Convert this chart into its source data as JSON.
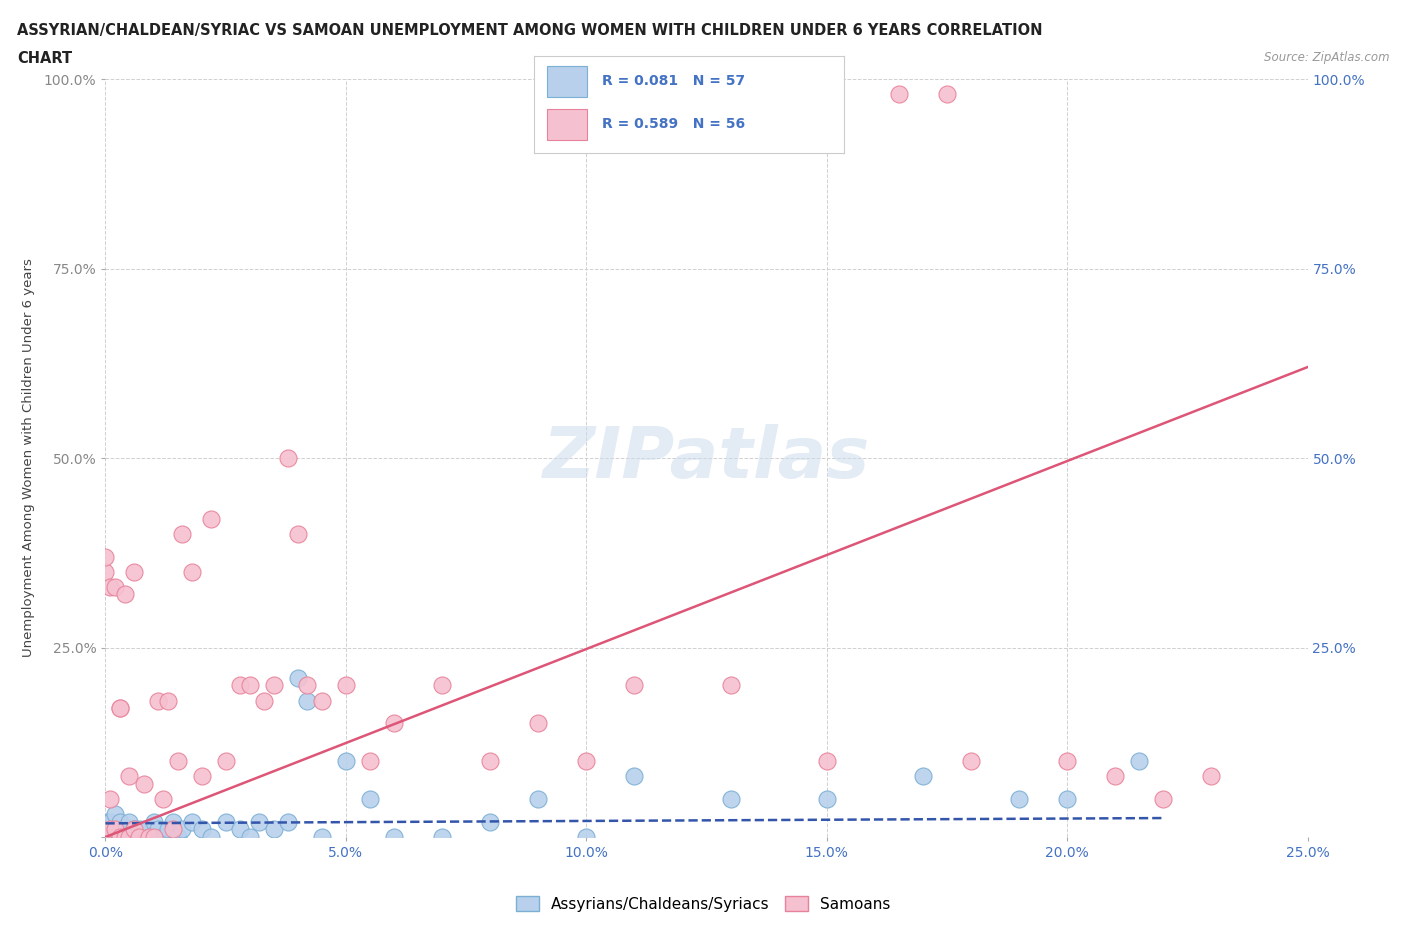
{
  "title_line1": "ASSYRIAN/CHALDEAN/SYRIAC VS SAMOAN UNEMPLOYMENT AMONG WOMEN WITH CHILDREN UNDER 6 YEARS CORRELATION",
  "title_line2": "CHART",
  "source": "Source: ZipAtlas.com",
  "ylabel": "Unemployment Among Women with Children Under 6 years",
  "xlim": [
    0,
    0.25
  ],
  "ylim": [
    0,
    1.0
  ],
  "xtick_vals": [
    0.0,
    0.05,
    0.1,
    0.15,
    0.2,
    0.25
  ],
  "ytick_vals": [
    0.0,
    0.25,
    0.5,
    0.75,
    1.0
  ],
  "xtick_labels": [
    "0.0%",
    "5.0%",
    "10.0%",
    "15.0%",
    "20.0%",
    "25.0%"
  ],
  "ytick_labels_left": [
    "",
    "25.0%",
    "50.0%",
    "75.0%",
    "100.0%"
  ],
  "ytick_labels_right": [
    "",
    "25.0%",
    "50.0%",
    "75.0%",
    "100.0%"
  ],
  "blue_fill": "#b8d0ec",
  "blue_edge": "#7bafd4",
  "pink_fill": "#f5c0d0",
  "pink_edge": "#e8829a",
  "line_blue_color": "#3355aa",
  "line_pink_color": "#dd5577",
  "tick_color": "#4472c4",
  "left_tick_color": "#888888",
  "group1_label": "Assyrians/Chaldeans/Syriacs",
  "group2_label": "Samoans",
  "watermark": "ZIPatlas",
  "bg_color": "#ffffff",
  "grid_color": "#d0d0d0",
  "blue_scatter_x": [
    0.0,
    0.0,
    0.0,
    0.001,
    0.001,
    0.001,
    0.002,
    0.002,
    0.002,
    0.003,
    0.003,
    0.003,
    0.004,
    0.004,
    0.005,
    0.005,
    0.005,
    0.006,
    0.006,
    0.007,
    0.007,
    0.008,
    0.009,
    0.01,
    0.01,
    0.011,
    0.012,
    0.013,
    0.014,
    0.015,
    0.016,
    0.018,
    0.02,
    0.022,
    0.025,
    0.028,
    0.03,
    0.032,
    0.035,
    0.038,
    0.04,
    0.042,
    0.045,
    0.05,
    0.055,
    0.06,
    0.07,
    0.08,
    0.09,
    0.1,
    0.11,
    0.13,
    0.15,
    0.17,
    0.19,
    0.2,
    0.215
  ],
  "blue_scatter_y": [
    0.0,
    0.01,
    0.02,
    0.0,
    0.01,
    0.02,
    0.0,
    0.01,
    0.03,
    0.0,
    0.01,
    0.02,
    0.0,
    0.01,
    0.0,
    0.01,
    0.02,
    0.0,
    0.01,
    0.0,
    0.01,
    0.01,
    0.0,
    0.0,
    0.02,
    0.01,
    0.0,
    0.01,
    0.02,
    0.0,
    0.01,
    0.02,
    0.01,
    0.0,
    0.02,
    0.01,
    0.0,
    0.02,
    0.01,
    0.02,
    0.21,
    0.18,
    0.0,
    0.1,
    0.05,
    0.0,
    0.0,
    0.02,
    0.05,
    0.0,
    0.08,
    0.05,
    0.05,
    0.08,
    0.05,
    0.05,
    0.1
  ],
  "pink_scatter_x": [
    0.0,
    0.0,
    0.0,
    0.001,
    0.001,
    0.001,
    0.002,
    0.002,
    0.003,
    0.003,
    0.003,
    0.004,
    0.004,
    0.005,
    0.005,
    0.006,
    0.006,
    0.007,
    0.008,
    0.009,
    0.01,
    0.011,
    0.012,
    0.013,
    0.014,
    0.015,
    0.016,
    0.018,
    0.02,
    0.022,
    0.025,
    0.028,
    0.03,
    0.033,
    0.035,
    0.038,
    0.04,
    0.042,
    0.045,
    0.05,
    0.055,
    0.06,
    0.07,
    0.08,
    0.09,
    0.1,
    0.11,
    0.13,
    0.15,
    0.165,
    0.175,
    0.18,
    0.2,
    0.21,
    0.22,
    0.23
  ],
  "pink_scatter_y": [
    0.35,
    0.37,
    0.0,
    0.01,
    0.33,
    0.05,
    0.33,
    0.01,
    0.0,
    0.17,
    0.17,
    0.0,
    0.32,
    0.08,
    0.0,
    0.35,
    0.01,
    0.0,
    0.07,
    0.0,
    0.0,
    0.18,
    0.05,
    0.18,
    0.01,
    0.1,
    0.4,
    0.35,
    0.08,
    0.42,
    0.1,
    0.2,
    0.2,
    0.18,
    0.2,
    0.5,
    0.4,
    0.2,
    0.18,
    0.2,
    0.1,
    0.15,
    0.2,
    0.1,
    0.15,
    0.1,
    0.2,
    0.2,
    0.1,
    0.98,
    0.98,
    0.1,
    0.1,
    0.08,
    0.05,
    0.08
  ],
  "blue_line_x": [
    0.0,
    0.22
  ],
  "blue_line_y": [
    0.018,
    0.025
  ],
  "pink_line_x": [
    0.0,
    0.25
  ],
  "pink_line_y": [
    0.0,
    0.62
  ]
}
